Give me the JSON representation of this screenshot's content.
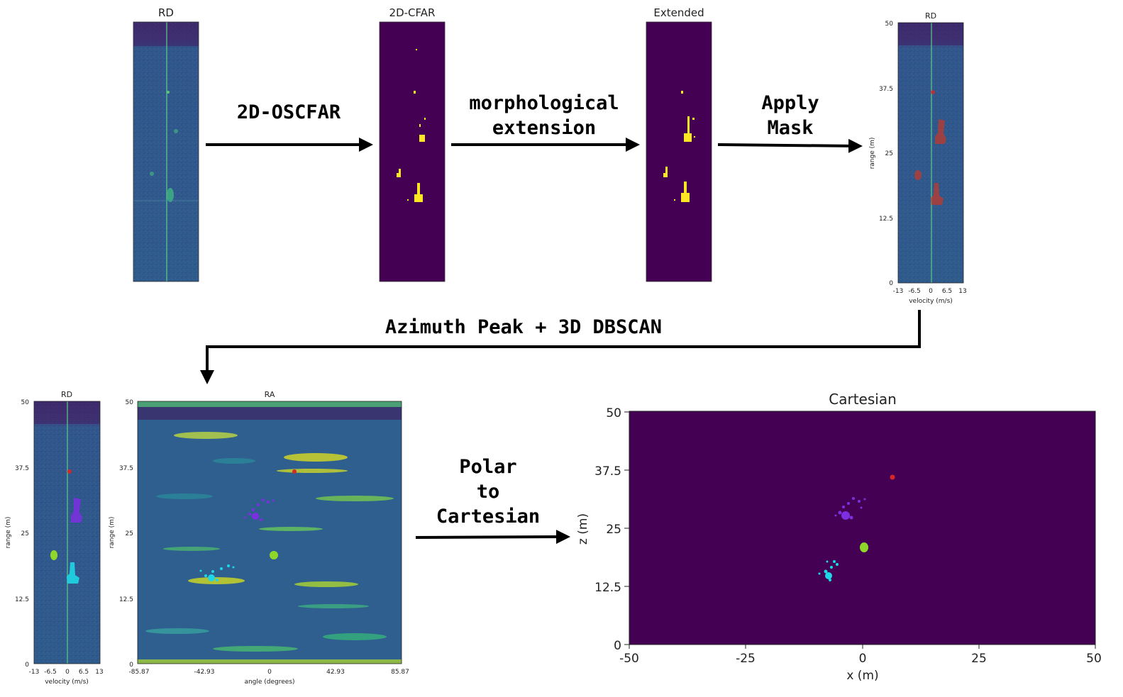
{
  "steps": {
    "oscfar": "2D-OSCFAR",
    "morph_line1": "morphological",
    "morph_line2": "extension",
    "apply_line1": "Apply",
    "apply_line2": "Mask",
    "azimuth": "Azimuth Peak + 3D DBSCAN",
    "polar_line1": "Polar",
    "polar_line2": "to",
    "polar_line3": "Cartesian"
  },
  "panels": {
    "rd_raw": {
      "title": "RD"
    },
    "cfar": {
      "title": "2D-CFAR"
    },
    "extended": {
      "title": "Extended"
    },
    "rd_masked": {
      "title": "RD",
      "ylabel": "range (m)",
      "xlabel": "velocity (m/s)",
      "yticks": [
        "50",
        "37.5",
        "25",
        "12.5",
        "0"
      ],
      "xticks": [
        "-13",
        "-6.5",
        "0",
        "6.5",
        "13"
      ]
    },
    "rd_clustered": {
      "title": "RD",
      "ylabel": "range (m)",
      "xlabel": "velocity (m/s)",
      "yticks": [
        "50",
        "37.5",
        "25",
        "12.5",
        "0"
      ],
      "xticks": [
        "-13",
        "-6.5",
        "0",
        "6.5",
        "13"
      ]
    },
    "ra": {
      "title": "RA",
      "ylabel": "range (m)",
      "xlabel": "angle (degrees)",
      "yticks": [
        "50",
        "37.5",
        "25",
        "12.5",
        "0"
      ],
      "xticks": [
        "-85.87",
        "-42.93",
        "0",
        "42.93",
        "85.87"
      ]
    },
    "cartesian": {
      "title": "Cartesian",
      "ylabel": "z (m)",
      "xlabel": "x (m)",
      "yticks": [
        "50",
        "37.5",
        "25",
        "12.5",
        "0"
      ],
      "xticks": [
        "-50",
        "-25",
        "0",
        "25",
        "50"
      ]
    }
  },
  "colors": {
    "viridis_dark": "#440154",
    "viridis_mid": "#3b528b",
    "viridis_yellow": "#fde725",
    "target_red": "#d62728",
    "cluster_purple": "#7b2fe0",
    "cluster_green": "#8fd82a",
    "cluster_cyan": "#1fd6e6"
  }
}
